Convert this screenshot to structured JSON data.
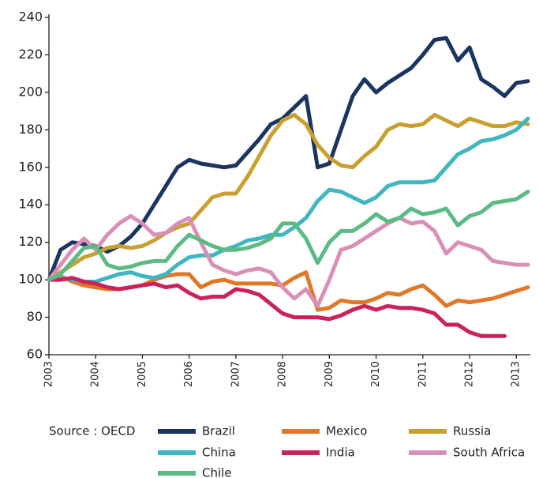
{
  "chart_data": {
    "type": "line",
    "source": "Source : OECD",
    "x": [
      2003,
      2003.25,
      2003.5,
      2003.75,
      2004,
      2004.25,
      2004.5,
      2004.75,
      2005,
      2005.25,
      2005.5,
      2005.75,
      2006,
      2006.25,
      2006.5,
      2006.75,
      2007,
      2007.25,
      2007.5,
      2007.75,
      2008,
      2008.25,
      2008.5,
      2008.75,
      2009,
      2009.25,
      2009.5,
      2009.75,
      2010,
      2010.25,
      2010.5,
      2010.75,
      2011,
      2011.25,
      2011.5,
      2011.75,
      2012,
      2012.25,
      2012.5,
      2012.75,
      2013,
      2013.25
    ],
    "xlim": [
      2003,
      2013.3
    ],
    "xticks": [
      2003,
      2004,
      2005,
      2006,
      2007,
      2008,
      2009,
      2010,
      2011,
      2012,
      2013
    ],
    "ylim": [
      60,
      240
    ],
    "yticks": [
      60,
      80,
      100,
      120,
      140,
      160,
      180,
      200,
      220,
      240
    ],
    "series": [
      {
        "name": "Brazil",
        "color": "#1b3560",
        "values": [
          100,
          116,
          120,
          119,
          118,
          115,
          118,
          123,
          130,
          140,
          150,
          160,
          164,
          162,
          161,
          160,
          161,
          168,
          175,
          183,
          186,
          192,
          198,
          160,
          162,
          180,
          198,
          207,
          200,
          205,
          209,
          213,
          220,
          228,
          229,
          217,
          224,
          207,
          203,
          198,
          205,
          206
        ]
      },
      {
        "name": "Mexico",
        "color": "#e07828",
        "values": [
          100,
          102,
          99,
          97,
          96,
          95,
          95,
          96,
          97,
          100,
          102,
          103,
          103,
          96,
          99,
          100,
          98,
          98,
          98,
          98,
          97,
          101,
          104,
          84,
          85,
          89,
          88,
          88,
          90,
          93,
          92,
          95,
          97,
          92,
          86,
          89,
          88,
          89,
          90,
          92,
          94,
          96
        ]
      },
      {
        "name": "Russia",
        "color": "#c9a030",
        "values": [
          100,
          104,
          108,
          112,
          114,
          117,
          118,
          117,
          118,
          121,
          125,
          128,
          130,
          137,
          144,
          146,
          146,
          155,
          166,
          177,
          185,
          188,
          183,
          172,
          165,
          161,
          160,
          166,
          171,
          180,
          183,
          182,
          183,
          188,
          185,
          182,
          186,
          184,
          182,
          182,
          184,
          183
        ]
      },
      {
        "name": "China",
        "color": "#3fb6c0",
        "values": [
          100,
          101,
          100,
          99,
          99,
          101,
          103,
          104,
          102,
          101,
          103,
          108,
          112,
          113,
          113,
          116,
          118,
          121,
          122,
          124,
          124,
          128,
          133,
          142,
          148,
          147,
          144,
          141,
          144,
          150,
          152,
          152,
          152,
          153,
          160,
          167,
          170,
          174,
          175,
          177,
          180,
          186
        ]
      },
      {
        "name": "India",
        "color": "#cc2258",
        "values": [
          100,
          100,
          101,
          99,
          98,
          96,
          95,
          96,
          97,
          98,
          96,
          97,
          93,
          90,
          91,
          91,
          95,
          94,
          92,
          87,
          82,
          80,
          80,
          80,
          79,
          81,
          84,
          86,
          84,
          86,
          85,
          85,
          84,
          82,
          76,
          76,
          72,
          70,
          70,
          70,
          null,
          null
        ]
      },
      {
        "name": "South Africa",
        "color": "#d990b8",
        "values": [
          100,
          108,
          116,
          122,
          116,
          124,
          130,
          134,
          130,
          124,
          125,
          130,
          133,
          120,
          108,
          105,
          103,
          105,
          106,
          104,
          96,
          90,
          95,
          86,
          100,
          116,
          118,
          122,
          126,
          130,
          133,
          130,
          131,
          126,
          114,
          120,
          118,
          116,
          110,
          109,
          108,
          108
        ]
      },
      {
        "name": "Chile",
        "color": "#5cba84",
        "values": [
          100,
          103,
          110,
          117,
          118,
          108,
          106,
          107,
          109,
          110,
          110,
          118,
          124,
          121,
          118,
          116,
          116,
          117,
          119,
          122,
          130,
          130,
          122,
          109,
          120,
          126,
          126,
          130,
          135,
          131,
          133,
          138,
          135,
          136,
          138,
          129,
          134,
          136,
          141,
          142,
          143,
          147
        ]
      }
    ]
  }
}
